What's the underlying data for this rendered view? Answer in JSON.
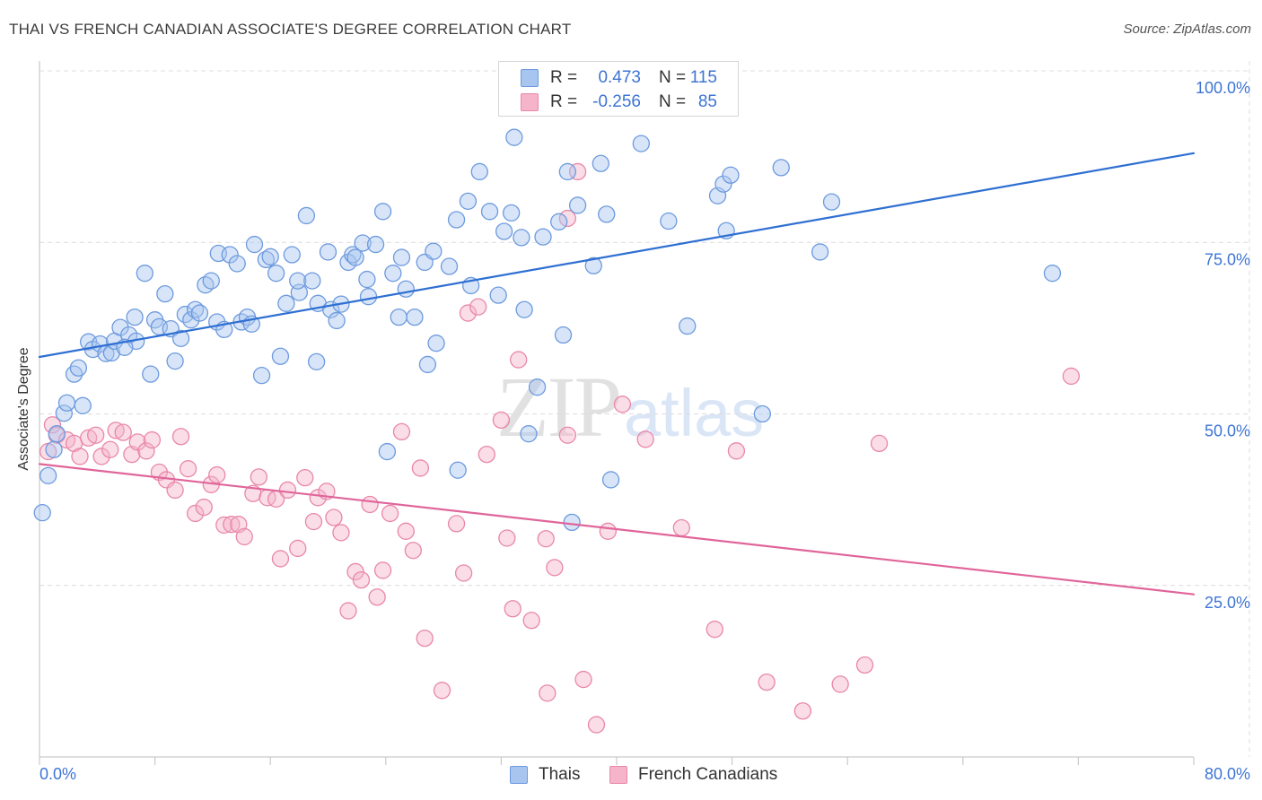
{
  "source": "Source: ZipAtlas.com",
  "watermark": {
    "zip": "ZIP",
    "atlas": "atlas"
  },
  "colors": {
    "axis_label": "#3d74d4",
    "grid": "#dcdcdc",
    "axis": "#c9c9c9"
  },
  "chart_data": {
    "type": "scatter",
    "title": "THAI VS FRENCH CANADIAN ASSOCIATE'S DEGREE CORRELATION CHART",
    "xlabel": "",
    "ylabel": "Associate's Degree",
    "xlim": [
      0,
      80
    ],
    "ylim": [
      0,
      100
    ],
    "grid": true,
    "x_ticks": [
      0,
      8,
      16,
      24,
      32,
      40,
      48,
      56,
      64,
      72,
      80
    ],
    "x_tick_labels": [
      {
        "value": 0,
        "label": "0.0%"
      },
      {
        "value": 80,
        "label": "80.0%"
      }
    ],
    "y_ticks": [
      {
        "value": 100,
        "label": "100.0%"
      },
      {
        "value": 75,
        "label": "75.0%"
      },
      {
        "value": 50,
        "label": "50.0%"
      },
      {
        "value": 25,
        "label": "25.0%"
      }
    ],
    "series": [
      {
        "name": "Thais",
        "fill": "#a8c5ef",
        "stroke": "#6d9ade",
        "line_color": "#2e6fd2",
        "stats": {
          "r_label": "R =",
          "r": "0.473",
          "n_label": "N =",
          "n": "115"
        },
        "trend": {
          "x": [
            0,
            80
          ],
          "y": [
            58.3,
            88.0
          ]
        },
        "points": [
          [
            0.2,
            35.6
          ],
          [
            0.6,
            41.0
          ],
          [
            1.0,
            44.8
          ],
          [
            1.2,
            47.1
          ],
          [
            1.7,
            50.1
          ],
          [
            1.9,
            51.6
          ],
          [
            3.0,
            51.2
          ],
          [
            2.4,
            55.8
          ],
          [
            2.7,
            56.7
          ],
          [
            3.4,
            60.5
          ],
          [
            3.7,
            59.4
          ],
          [
            4.2,
            60.2
          ],
          [
            4.6,
            58.8
          ],
          [
            5.0,
            58.9
          ],
          [
            5.2,
            60.6
          ],
          [
            5.6,
            62.6
          ],
          [
            6.2,
            61.5
          ],
          [
            6.7,
            60.6
          ],
          [
            5.9,
            59.7
          ],
          [
            7.7,
            55.8
          ],
          [
            6.6,
            64.1
          ],
          [
            7.3,
            70.5
          ],
          [
            8.0,
            63.7
          ],
          [
            8.3,
            62.7
          ],
          [
            8.7,
            67.5
          ],
          [
            9.1,
            62.4
          ],
          [
            9.4,
            57.7
          ],
          [
            9.8,
            61.0
          ],
          [
            10.1,
            64.5
          ],
          [
            10.5,
            63.7
          ],
          [
            10.8,
            65.2
          ],
          [
            11.1,
            64.7
          ],
          [
            11.5,
            68.8
          ],
          [
            11.9,
            69.4
          ],
          [
            12.3,
            63.4
          ],
          [
            12.4,
            73.4
          ],
          [
            12.8,
            62.3
          ],
          [
            13.2,
            73.2
          ],
          [
            13.7,
            71.9
          ],
          [
            14.0,
            63.4
          ],
          [
            14.4,
            64.1
          ],
          [
            14.7,
            63.1
          ],
          [
            14.9,
            74.7
          ],
          [
            15.4,
            55.6
          ],
          [
            15.7,
            72.5
          ],
          [
            16.0,
            72.9
          ],
          [
            16.4,
            70.5
          ],
          [
            16.7,
            58.4
          ],
          [
            17.1,
            66.1
          ],
          [
            17.5,
            73.2
          ],
          [
            18.0,
            67.7
          ],
          [
            17.9,
            69.4
          ],
          [
            18.5,
            78.9
          ],
          [
            18.9,
            69.4
          ],
          [
            19.2,
            57.6
          ],
          [
            19.3,
            66.1
          ],
          [
            20.0,
            73.6
          ],
          [
            20.2,
            65.2
          ],
          [
            20.6,
            63.6
          ],
          [
            20.9,
            66.0
          ],
          [
            21.4,
            72.1
          ],
          [
            21.7,
            73.2
          ],
          [
            21.9,
            72.8
          ],
          [
            22.4,
            74.9
          ],
          [
            22.7,
            69.6
          ],
          [
            22.8,
            67.1
          ],
          [
            23.3,
            74.7
          ],
          [
            23.8,
            79.5
          ],
          [
            24.1,
            44.5
          ],
          [
            24.5,
            70.5
          ],
          [
            24.9,
            64.1
          ],
          [
            25.1,
            72.8
          ],
          [
            25.4,
            68.2
          ],
          [
            26.0,
            64.1
          ],
          [
            26.7,
            72.1
          ],
          [
            26.9,
            57.2
          ],
          [
            27.3,
            73.7
          ],
          [
            27.5,
            60.3
          ],
          [
            28.4,
            71.5
          ],
          [
            28.9,
            78.3
          ],
          [
            29.0,
            41.8
          ],
          [
            29.7,
            81.0
          ],
          [
            29.9,
            68.7
          ],
          [
            30.5,
            85.3
          ],
          [
            31.2,
            79.5
          ],
          [
            31.8,
            67.3
          ],
          [
            32.2,
            76.6
          ],
          [
            32.7,
            79.3
          ],
          [
            32.9,
            90.3
          ],
          [
            33.4,
            75.7
          ],
          [
            33.6,
            65.2
          ],
          [
            33.9,
            47.1
          ],
          [
            34.5,
            53.9
          ],
          [
            34.9,
            75.8
          ],
          [
            36.0,
            78.0
          ],
          [
            36.3,
            61.5
          ],
          [
            36.6,
            85.3
          ],
          [
            36.9,
            34.2
          ],
          [
            37.3,
            80.4
          ],
          [
            38.4,
            71.6
          ],
          [
            38.9,
            86.5
          ],
          [
            39.3,
            79.1
          ],
          [
            39.6,
            40.4
          ],
          [
            41.7,
            89.4
          ],
          [
            43.6,
            78.1
          ],
          [
            44.9,
            62.8
          ],
          [
            47.0,
            81.8
          ],
          [
            47.4,
            83.5
          ],
          [
            47.6,
            76.7
          ],
          [
            47.9,
            84.8
          ],
          [
            50.1,
            50.0
          ],
          [
            51.4,
            85.9
          ],
          [
            54.1,
            73.6
          ],
          [
            54.9,
            80.9
          ],
          [
            70.2,
            70.5
          ]
        ]
      },
      {
        "name": "French Canadians",
        "fill": "#f5b4c9",
        "stroke": "#e987a9",
        "line_color": "#e0659a",
        "stats": {
          "r_label": "R =",
          "r": "-0.256",
          "n_label": "N =",
          "n": "85"
        },
        "trend": {
          "x": [
            0,
            80
          ],
          "y": [
            42.7,
            23.7
          ]
        },
        "points": [
          [
            0.6,
            44.5
          ],
          [
            0.9,
            48.4
          ],
          [
            1.2,
            46.9
          ],
          [
            1.9,
            46.2
          ],
          [
            2.4,
            45.7
          ],
          [
            2.8,
            43.8
          ],
          [
            3.4,
            46.5
          ],
          [
            3.9,
            46.9
          ],
          [
            4.3,
            43.8
          ],
          [
            4.9,
            44.8
          ],
          [
            5.3,
            47.6
          ],
          [
            5.8,
            47.3
          ],
          [
            6.4,
            44.1
          ],
          [
            6.8,
            45.9
          ],
          [
            7.4,
            44.6
          ],
          [
            7.8,
            46.2
          ],
          [
            8.3,
            41.5
          ],
          [
            8.8,
            40.4
          ],
          [
            9.4,
            38.9
          ],
          [
            9.8,
            46.7
          ],
          [
            10.3,
            42.0
          ],
          [
            10.8,
            35.5
          ],
          [
            11.4,
            36.4
          ],
          [
            11.9,
            39.7
          ],
          [
            12.3,
            41.1
          ],
          [
            12.8,
            33.8
          ],
          [
            13.3,
            33.9
          ],
          [
            13.8,
            33.9
          ],
          [
            14.2,
            32.1
          ],
          [
            14.8,
            38.4
          ],
          [
            15.2,
            40.8
          ],
          [
            15.8,
            37.8
          ],
          [
            16.4,
            37.6
          ],
          [
            16.7,
            28.9
          ],
          [
            17.2,
            38.9
          ],
          [
            17.9,
            30.4
          ],
          [
            18.4,
            40.7
          ],
          [
            19.0,
            34.3
          ],
          [
            19.3,
            37.8
          ],
          [
            19.9,
            38.7
          ],
          [
            20.4,
            34.9
          ],
          [
            20.9,
            32.7
          ],
          [
            21.4,
            21.3
          ],
          [
            21.9,
            27.0
          ],
          [
            22.3,
            25.8
          ],
          [
            22.9,
            36.8
          ],
          [
            23.4,
            23.3
          ],
          [
            23.8,
            27.2
          ],
          [
            24.3,
            35.5
          ],
          [
            25.1,
            47.4
          ],
          [
            25.4,
            32.9
          ],
          [
            25.9,
            30.1
          ],
          [
            26.4,
            42.1
          ],
          [
            26.7,
            17.3
          ],
          [
            27.9,
            9.7
          ],
          [
            28.9,
            34.0
          ],
          [
            29.4,
            26.8
          ],
          [
            29.7,
            64.7
          ],
          [
            30.4,
            65.6
          ],
          [
            31.0,
            44.1
          ],
          [
            32.0,
            49.1
          ],
          [
            32.4,
            31.9
          ],
          [
            32.8,
            21.6
          ],
          [
            33.2,
            57.9
          ],
          [
            34.1,
            19.9
          ],
          [
            35.1,
            31.8
          ],
          [
            35.2,
            9.3
          ],
          [
            35.7,
            27.6
          ],
          [
            36.6,
            46.9
          ],
          [
            36.6,
            78.5
          ],
          [
            37.3,
            85.3
          ],
          [
            37.7,
            11.3
          ],
          [
            38.6,
            4.7
          ],
          [
            39.4,
            32.9
          ],
          [
            40.4,
            51.4
          ],
          [
            42.0,
            46.3
          ],
          [
            44.5,
            33.4
          ],
          [
            46.8,
            18.6
          ],
          [
            48.3,
            44.6
          ],
          [
            50.4,
            10.9
          ],
          [
            52.9,
            6.7
          ],
          [
            55.5,
            10.6
          ],
          [
            57.2,
            13.4
          ],
          [
            58.2,
            45.7
          ],
          [
            71.5,
            55.5
          ]
        ]
      }
    ]
  }
}
